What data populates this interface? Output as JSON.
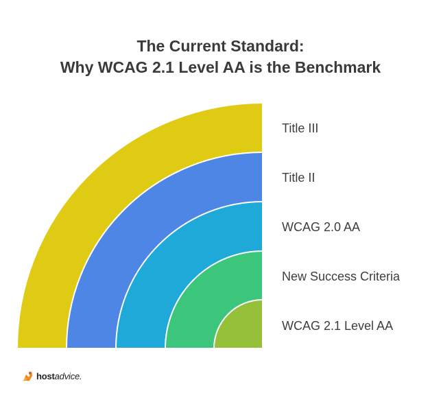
{
  "title": {
    "line1": "The Current Standard:",
    "line2": "Why WCAG 2.1 Level AA is the Benchmark"
  },
  "layers": [
    {
      "label": "Title III",
      "color": "#dfcb14"
    },
    {
      "label": "Title II",
      "color": "#4d86e4"
    },
    {
      "label": "WCAG 2.0 AA",
      "color": "#1ea9d8"
    },
    {
      "label": "New Success Criteria",
      "color": "#3cc67b"
    },
    {
      "label": "WCAG 2.1 Level AA",
      "color": "#94c03a"
    }
  ],
  "brand": {
    "name_bold": "host",
    "name_light": "advice."
  }
}
